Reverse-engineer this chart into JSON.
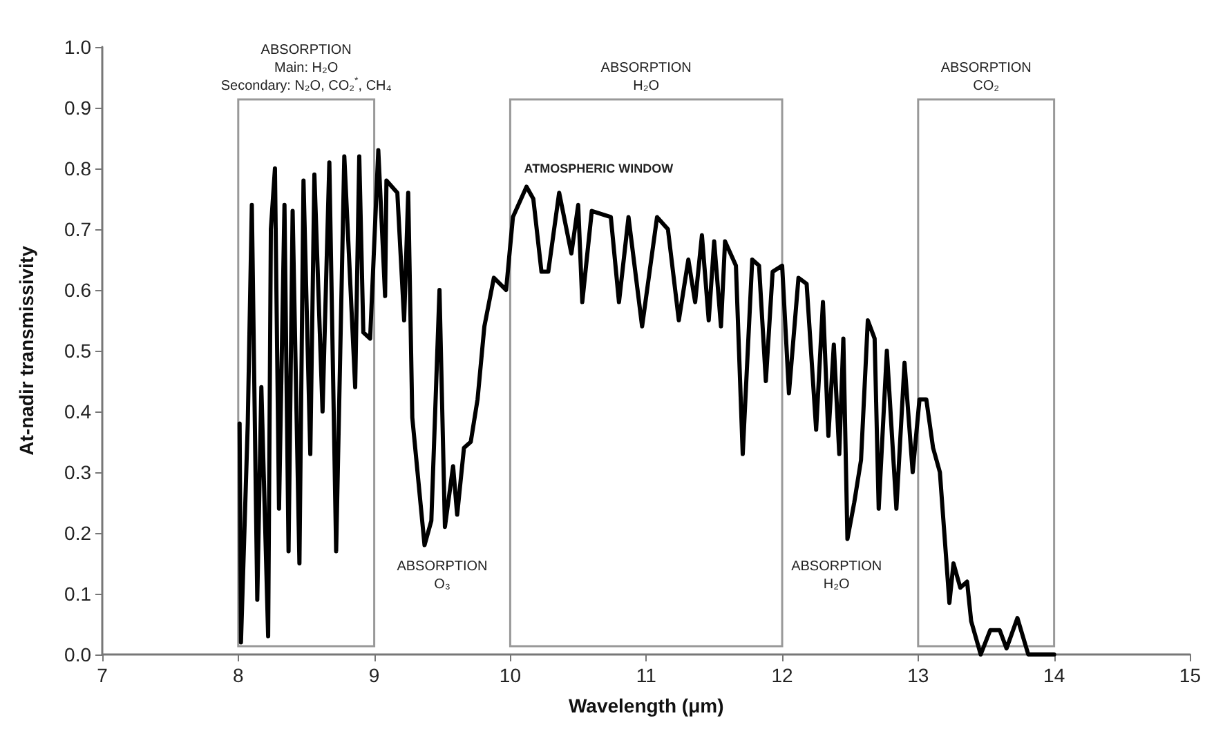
{
  "chart_data": {
    "type": "line",
    "xlabel": "Wavelength (μm)",
    "ylabel": "At-nadir transmissivity",
    "xlim": [
      7,
      15
    ],
    "xticks": [
      7,
      8,
      9,
      10,
      11,
      12,
      13,
      14,
      15
    ],
    "ylim": [
      0,
      1
    ],
    "yticks": [
      {
        "value": 0,
        "label": "0.0"
      },
      {
        "value": 0.1,
        "label": "0.1"
      },
      {
        "value": 0.2,
        "label": "0.2"
      },
      {
        "value": 0.3,
        "label": "0.3"
      },
      {
        "value": 0.4,
        "label": "0.4"
      },
      {
        "value": 0.5,
        "label": "0.5"
      },
      {
        "value": 0.6,
        "label": "0.6"
      },
      {
        "value": 0.7,
        "label": "0.7"
      },
      {
        "value": 0.8,
        "label": "0.8"
      },
      {
        "value": 0.9,
        "label": "0.9"
      },
      {
        "value": 1,
        "label": "1.0"
      }
    ],
    "grid": false,
    "marker": "none",
    "line_style": "solid",
    "series": [
      {
        "color": "#000000",
        "x": [
          8.01,
          8.02,
          8.07,
          8.1,
          8.14,
          8.17,
          8.22,
          8.24,
          8.27,
          8.3,
          8.34,
          8.37,
          8.4,
          8.45,
          8.48,
          8.53,
          8.56,
          8.62,
          8.67,
          8.72,
          8.78,
          8.86,
          8.89,
          8.92,
          8.97,
          9.03,
          9.08,
          9.09,
          9.17,
          9.22,
          9.25,
          9.28,
          9.37,
          9.42,
          9.48,
          9.52,
          9.58,
          9.61,
          9.66,
          9.71,
          9.76,
          9.81,
          9.88,
          9.97,
          10.02,
          10.12,
          10.17,
          10.23,
          10.28,
          10.36,
          10.45,
          10.5,
          10.53,
          10.6,
          10.74,
          10.8,
          10.87,
          10.97,
          11.08,
          11.16,
          11.24,
          11.31,
          11.36,
          11.41,
          11.46,
          11.5,
          11.55,
          11.58,
          11.66,
          11.71,
          11.78,
          11.83,
          11.88,
          11.93,
          12.0,
          12.05,
          12.12,
          12.18,
          12.25,
          12.3,
          12.34,
          12.38,
          12.42,
          12.45,
          12.48,
          12.53,
          12.58,
          12.63,
          12.68,
          12.71,
          12.77,
          12.84,
          12.9,
          12.96,
          13.01,
          13.06,
          13.11,
          13.16,
          13.23,
          13.26,
          13.31,
          13.36,
          13.39,
          13.46,
          13.53,
          13.6,
          13.65,
          13.73,
          13.81,
          13.94,
          14.0
        ],
        "values": [
          0.38,
          0.02,
          0.38,
          0.74,
          0.09,
          0.44,
          0.03,
          0.7,
          0.8,
          0.24,
          0.74,
          0.17,
          0.73,
          0.15,
          0.78,
          0.33,
          0.79,
          0.4,
          0.81,
          0.17,
          0.82,
          0.44,
          0.82,
          0.53,
          0.52,
          0.83,
          0.59,
          0.78,
          0.76,
          0.55,
          0.76,
          0.39,
          0.18,
          0.22,
          0.6,
          0.21,
          0.31,
          0.23,
          0.34,
          0.35,
          0.42,
          0.54,
          0.62,
          0.6,
          0.72,
          0.77,
          0.75,
          0.63,
          0.63,
          0.76,
          0.66,
          0.74,
          0.58,
          0.73,
          0.72,
          0.58,
          0.72,
          0.54,
          0.72,
          0.7,
          0.55,
          0.65,
          0.58,
          0.69,
          0.55,
          0.68,
          0.54,
          0.68,
          0.64,
          0.33,
          0.65,
          0.64,
          0.45,
          0.63,
          0.64,
          0.43,
          0.62,
          0.61,
          0.37,
          0.58,
          0.36,
          0.51,
          0.33,
          0.52,
          0.19,
          0.25,
          0.32,
          0.55,
          0.52,
          0.24,
          0.5,
          0.24,
          0.48,
          0.3,
          0.42,
          0.42,
          0.34,
          0.3,
          0.085,
          0.15,
          0.11,
          0.12,
          0.055,
          0.0,
          0.04,
          0.04,
          0.01,
          0.06,
          0.0,
          0.0,
          0.0
        ]
      }
    ],
    "bands": [
      {
        "axis": "x",
        "from": 8,
        "to": 9,
        "label": "ABSORPTION\nMain: H₂O\nSecondary: N₂O, CO₂$^{*}$, CH₄",
        "color": "#999999"
      },
      {
        "axis": "x",
        "from": 10,
        "to": 12,
        "label": "ABSORPTION\nH₂O",
        "color": "#999999"
      },
      {
        "axis": "x",
        "from": 13,
        "to": 14,
        "label": "ABSORPTION\nCO₂",
        "color": "#999999"
      }
    ],
    "annotations": [
      "ABSORPTION\nO₃",
      "ABSORPTION\nH₂O",
      "ATMOSPHERIC WINDOW"
    ]
  }
}
